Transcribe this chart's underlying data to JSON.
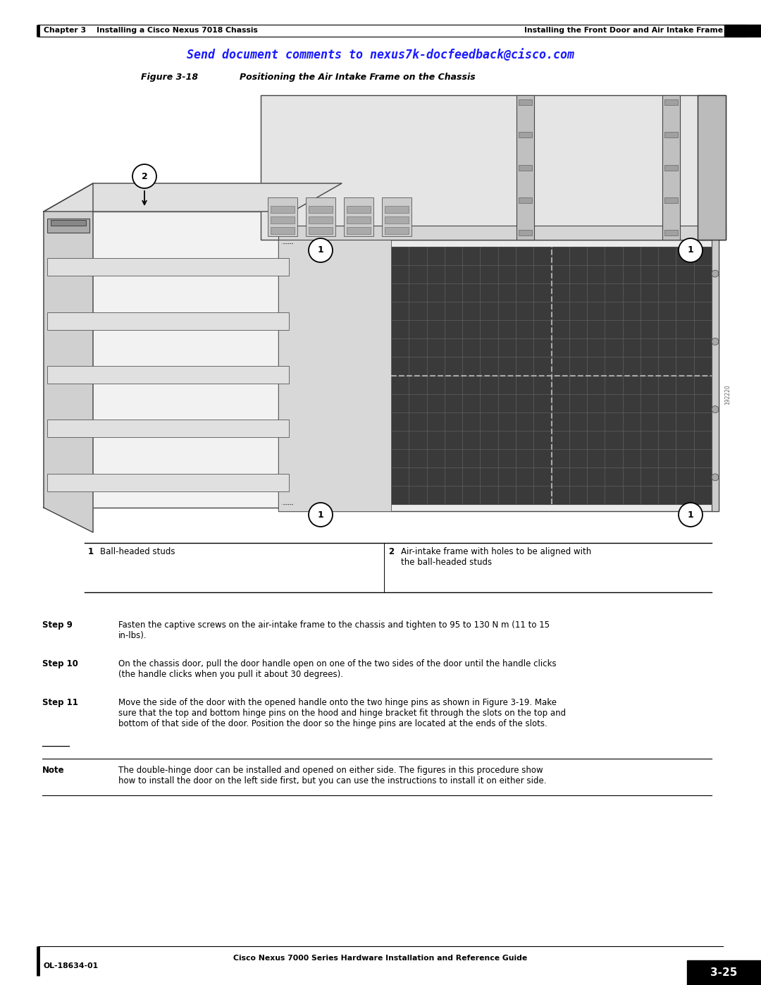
{
  "bg_color": "#ffffff",
  "page_width": 10.8,
  "page_height": 13.97,
  "top_bar_left_text": "Chapter 3    Installing a Cisco Nexus 7018 Chassis",
  "top_bar_right_text": "Installing the Front Door and Air Intake Frame",
  "header_link": "Send document comments to nexus7k-docfeedback@cisco.com",
  "figure_label": "Figure 3-18",
  "figure_title": "Positioning the Air Intake Frame on the Chassis",
  "table_col1_num": "1",
  "table_col1_text": "Ball-headed studs",
  "table_col2_num": "2",
  "table_col2_text": "Air-intake frame with holes to be aligned with\nthe ball-headed studs",
  "steps": [
    {
      "label": "Step 9",
      "text": "Fasten the captive screws on the air-intake frame to the chassis and tighten to 95 to 130 N m (11 to 15\nin-lbs)."
    },
    {
      "label": "Step 10",
      "text": "On the chassis door, pull the door handle open on one of the two sides of the door until the handle clicks\n(the handle clicks when you pull it about 30 degrees)."
    },
    {
      "label": "Step 11",
      "text": "Move the side of the door with the opened handle onto the two hinge pins as shown in {link}. Make\nsure that the top and bottom hinge pins on the hood and hinge bracket fit through the slots on the top and\nbottom of that side of the door. Position the door so the hinge pins are located at the ends of the slots.",
      "link": "Figure 3-19"
    }
  ],
  "note_label": "Note",
  "note_text": "The double-hinge door can be installed and opened on either side. The figures in this procedure show\nhow to install the door on the left side first, but you can use the instructions to install it on either side.",
  "bottom_center_text": "Cisco Nexus 7000 Series Hardware Installation and Reference Guide",
  "bottom_left_text": "OL-18634-01",
  "bottom_right_text": "3-25",
  "link_color": "#0000CC",
  "blue_link_color": "#1a1aff"
}
